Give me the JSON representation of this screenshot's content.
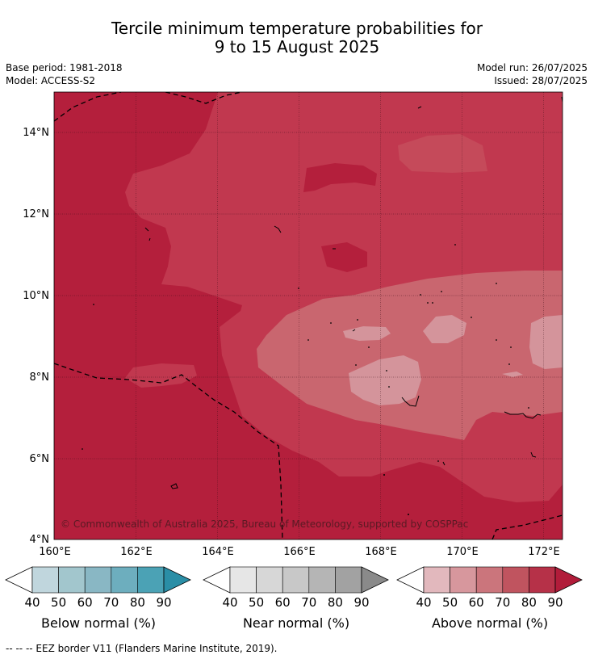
{
  "title": {
    "line1": "Tercile minimum temperature probabilities for",
    "line2": "9 to 15 August 2025"
  },
  "meta": {
    "base_period": "Base period: 1981-2018",
    "model": "Model: ACCESS-S2",
    "model_run": "Model run: 26/07/2025",
    "issued": "Issued: 28/07/2025"
  },
  "map": {
    "lat_labels": [
      "14°N",
      "12°N",
      "10°N",
      "8°N",
      "6°N",
      "4°N"
    ],
    "lon_labels": [
      "160°E",
      "162°E",
      "164°E",
      "166°E",
      "168°E",
      "170°E",
      "172°E"
    ],
    "credit": "© Commonwealth of Australia 2025, Bureau of Meteorology, supported by COSPPac",
    "colors": {
      "above_80_90": "#b41f3c",
      "above_70_80": "#c1384f",
      "above_60_70": "#c9666f",
      "above_50_60": "#d4949b",
      "above_40_50": "#e0b7bb"
    }
  },
  "colorbars": [
    {
      "label": "Below normal (%)",
      "ticks": [
        "40",
        "50",
        "60",
        "70",
        "80",
        "90"
      ],
      "colors": [
        "#c0d6dd",
        "#a2c6cd",
        "#89b7c4",
        "#6daebe",
        "#4ba2b5",
        "#2a8ea6"
      ]
    },
    {
      "label": "Near normal (%)",
      "ticks": [
        "40",
        "50",
        "60",
        "70",
        "80",
        "90"
      ],
      "colors": [
        "#e6e6e6",
        "#d7d7d7",
        "#c8c8c8",
        "#b5b5b5",
        "#a2a2a2",
        "#8a8a8a"
      ]
    },
    {
      "label": "Above normal (%)",
      "ticks": [
        "40",
        "50",
        "60",
        "70",
        "80",
        "90"
      ],
      "colors": [
        "#e2b8bd",
        "#d7979d",
        "#cb757c",
        "#c0545f",
        "#b63148",
        "#b11c3a"
      ]
    }
  ],
  "footnote": "--  --  -- EEZ border V11 (Flanders Marine Institute, 2019)."
}
